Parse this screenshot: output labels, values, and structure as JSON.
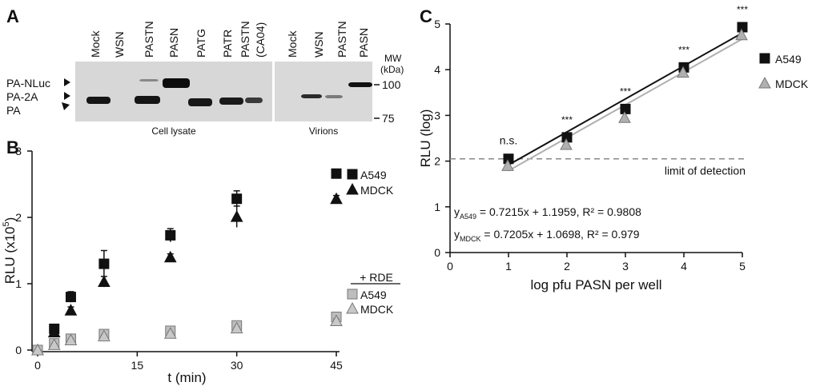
{
  "panels": {
    "a": "A",
    "b": "B",
    "c": "C"
  },
  "blot": {
    "lanes_lysate": [
      "Mock",
      "WSN",
      "PASTN",
      "PASN",
      "PATG",
      "PATR",
      "PASTN",
      "(CA04)"
    ],
    "lanes_virion": [
      "Mock",
      "WSN",
      "PASTN",
      "PASN"
    ],
    "band_labels": [
      "PA-NLuc",
      "PA-2A",
      "PA"
    ],
    "mw_title": [
      "MW",
      "(kDa)"
    ],
    "mw_marks": [
      "100",
      "75"
    ],
    "section_labels": [
      "Cell lysate",
      "Virions"
    ]
  },
  "chart_data": [
    {
      "type": "scatter",
      "panel": "B",
      "xlabel": "t (min)",
      "ylabel": "RLU (x10",
      "ylabel_sup": "5",
      "ylabel_close": ")",
      "xticks": [
        "0",
        "15",
        "30",
        "45"
      ],
      "yticks": [
        "0",
        "1",
        "2",
        "3"
      ],
      "xlim": [
        0,
        45
      ],
      "ylim": [
        0,
        3
      ],
      "x": [
        0,
        2.5,
        5,
        10,
        20,
        30,
        45
      ],
      "series": [
        {
          "name": "A549",
          "values": [
            0,
            0.32,
            0.8,
            1.3,
            1.73,
            2.28,
            2.66
          ],
          "errors": [
            0,
            0.04,
            0.08,
            0.2,
            0.1,
            0.12,
            0.06
          ],
          "marker": "square",
          "color": "#111111"
        },
        {
          "name": "MDCK",
          "values": [
            0,
            0.27,
            0.6,
            1.03,
            1.4,
            2.01,
            2.28
          ],
          "errors": [
            0,
            0.03,
            0.05,
            0.08,
            0.05,
            0.16,
            0.05
          ],
          "marker": "triangle",
          "color": "#111111"
        },
        {
          "name": "A549",
          "values": [
            0,
            0.1,
            0.17,
            0.24,
            0.29,
            0.37,
            0.5
          ],
          "errors": [
            0,
            0.02,
            0.02,
            0.03,
            0.03,
            0.03,
            0.04
          ],
          "marker": "square",
          "color": "#bdbdbd"
        },
        {
          "name": "MDCK",
          "values": [
            0,
            0.08,
            0.15,
            0.21,
            0.25,
            0.33,
            0.44
          ],
          "errors": [
            0,
            0.02,
            0.02,
            0.02,
            0.02,
            0.02,
            0.03
          ],
          "marker": "triangle",
          "color": "#c8c8c8"
        }
      ],
      "rde_legend_title": "+ RDE"
    },
    {
      "type": "scatter",
      "panel": "C",
      "xlabel": "log pfu PASN per well",
      "ylabel": "RLU (log)",
      "xticks": [
        "0",
        "1",
        "2",
        "3",
        "4",
        "5"
      ],
      "yticks": [
        "0",
        "1",
        "2",
        "3",
        "4",
        "5"
      ],
      "xlim": [
        0,
        5
      ],
      "ylim": [
        0,
        5
      ],
      "x": [
        1,
        2,
        3,
        4,
        5
      ],
      "series": [
        {
          "name": "A549",
          "values": [
            2.05,
            2.52,
            3.14,
            4.05,
            4.93
          ],
          "marker": "square",
          "color": "#111111",
          "fit": [
            0.7215,
            1.1959
          ]
        },
        {
          "name": "MDCK",
          "values": [
            1.97,
            2.43,
            3.02,
            4.01,
            4.83
          ],
          "marker": "triangle",
          "color": "#b0b0b0",
          "fit": [
            0.7205,
            1.0698
          ]
        }
      ],
      "significance": [
        "n.s.",
        "***",
        "***",
        "***",
        "***"
      ],
      "detection_limit": 2.05,
      "detection_label": "limit of detection",
      "equations": [
        {
          "y": "y",
          "sub": "A549",
          "rest": " = 0.7215x + 1.1959, R² = 0.9808"
        },
        {
          "y": "y",
          "sub": "MDCK",
          "rest": " = 0.7205x + 1.0698, R² = 0.979"
        }
      ]
    }
  ]
}
